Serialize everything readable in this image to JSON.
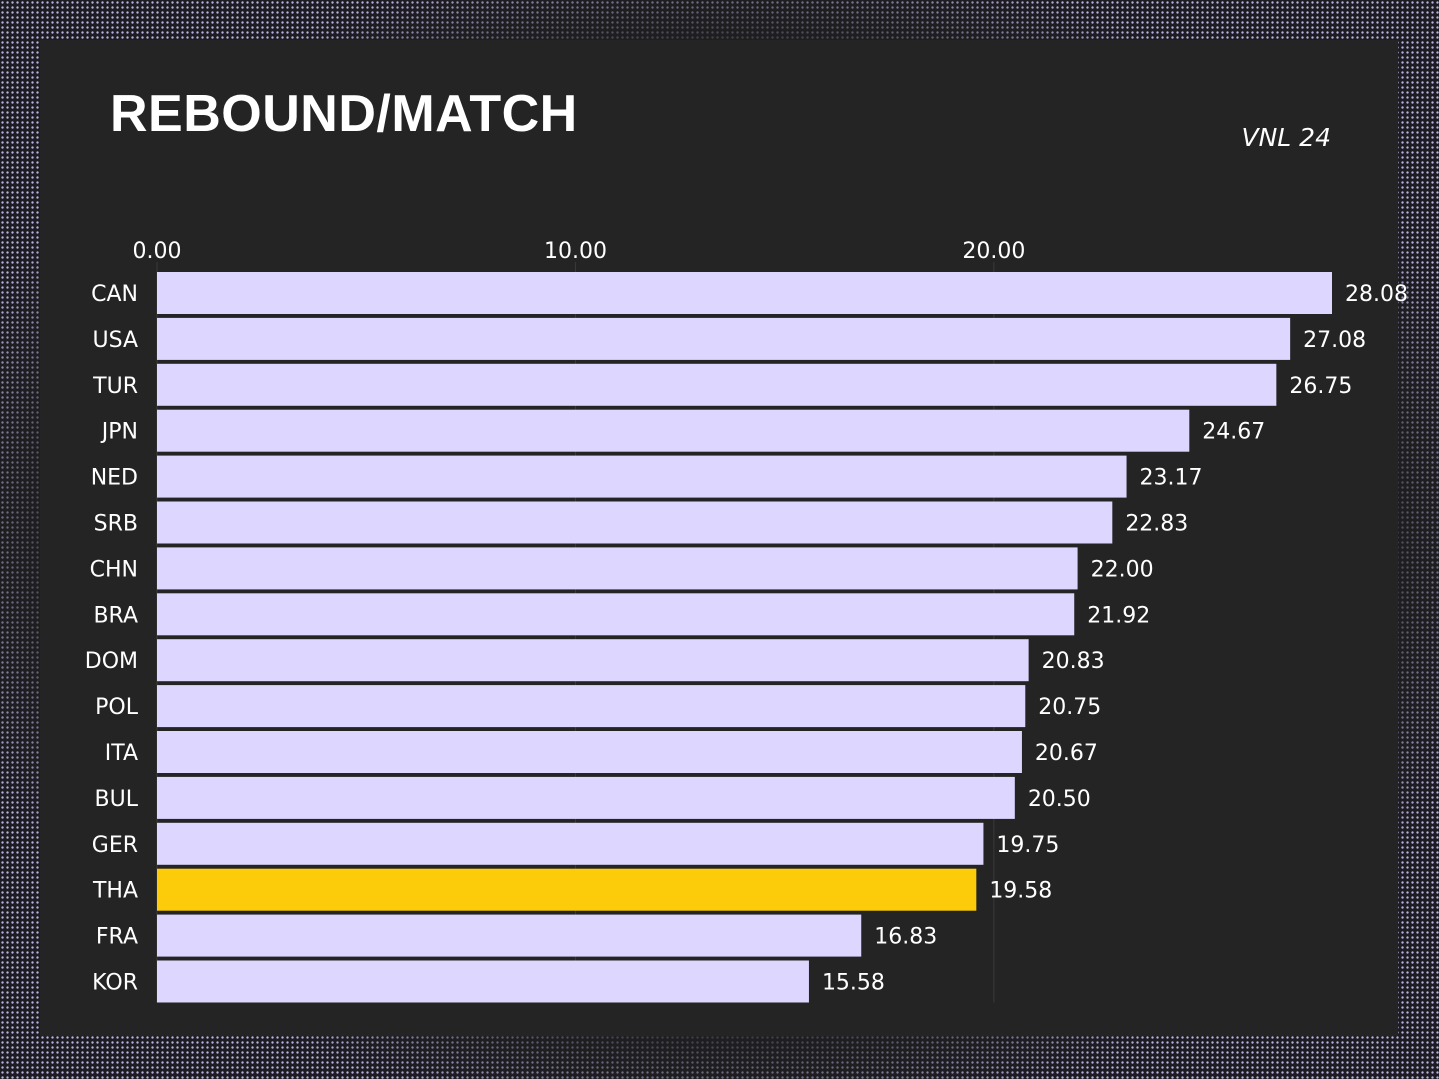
{
  "chart_data": {
    "type": "bar",
    "orientation": "horizontal",
    "title": "REBOUND/MATCH",
    "subtitle": "VNL 24",
    "categories": [
      "CAN",
      "USA",
      "TUR",
      "JPN",
      "NED",
      "SRB",
      "CHN",
      "BRA",
      "DOM",
      "POL",
      "ITA",
      "BUL",
      "GER",
      "THA",
      "FRA",
      "KOR"
    ],
    "values": [
      28.08,
      27.08,
      26.75,
      24.67,
      23.17,
      22.83,
      22.0,
      21.92,
      20.83,
      20.75,
      20.67,
      20.5,
      19.75,
      19.58,
      16.83,
      15.58
    ],
    "value_labels": [
      "28.08",
      "27.08",
      "26.75",
      "24.67",
      "23.17",
      "22.83",
      "22.00",
      "21.92",
      "20.83",
      "20.75",
      "20.67",
      "20.50",
      "19.75",
      "19.58",
      "16.83",
      "15.58"
    ],
    "xticks": [
      0,
      10,
      20
    ],
    "xtick_labels": [
      "0.00",
      "10.00",
      "20.00"
    ],
    "xaxis_position": "top",
    "xlim": [
      0,
      28.08
    ],
    "highlight_category": "THA",
    "grid": true,
    "colors": {
      "bar": "#ddd6fe",
      "highlight": "#fccc0a",
      "text": "#ffffff",
      "panel": "#242424",
      "grid": "#3a3a3a"
    }
  }
}
